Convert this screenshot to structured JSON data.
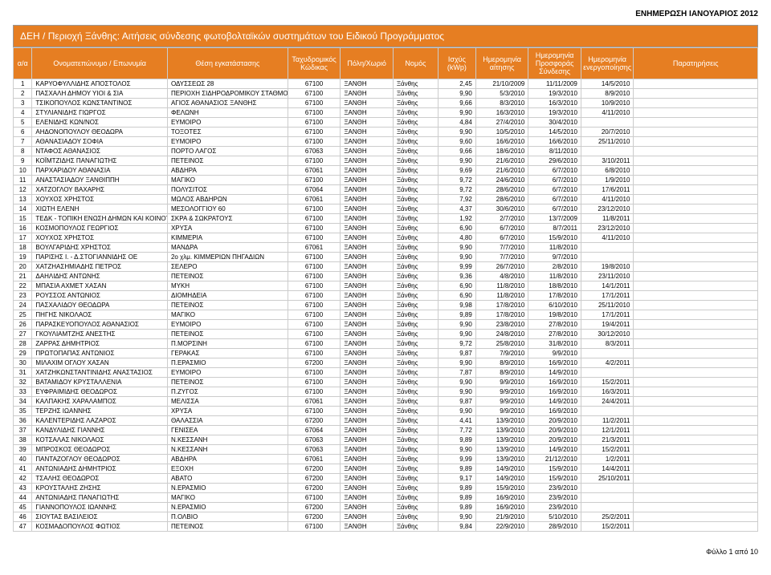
{
  "header_right": "ΕΝΗΜΕΡΩΣΗ ΙΑΝΟΥΑΡΙΟΣ 2012",
  "title": "ΔΕΗ / Περιοχή Ξάνθης:  Αιτήσεις σύνδεσης φωτοβολταϊκών συστημάτων του Ειδικού Προγράμματος",
  "columns": [
    "α/α",
    "Ονοματεπώνυμο / Επωνυμία",
    "Θέση εγκατάστασης",
    "Ταχυδρομικός Κώδικας",
    "Πόλη/Χωριό",
    "Νομός",
    "Ισχύς (kWp)",
    "Ημερομηνία αίτησης",
    "Ημερομηνία Προσφοράς Σύνδεσης",
    "Ημερομηνία ενεργοποίησης",
    "Παρατηρήσεις"
  ],
  "rows": [
    [
      "1",
      "ΚΑΡΥΟΦΥΛΛΙΔΗΣ ΑΠΟΣΤΟΛΟΣ",
      "ΟΔΥΣΣΕΩΣ 28",
      "67100",
      "ΞΑΝΘΗ",
      "Ξάνθης",
      "2,45",
      "21/10/2009",
      "11/11/2009",
      "14/5/2010",
      ""
    ],
    [
      "2",
      "ΠΑΣΧΑΛΗ ΔΗΜΟΥ ΥΙΟΙ & ΣΙΑ",
      "ΠΕΡΙΟΧΗ ΣΙΔΗΡΟΔΡΟΜΙΚΟΥ ΣΤΑΘΜΟΥ",
      "67100",
      "ΞΑΝΘΗ",
      "Ξάνθης",
      "9,90",
      "5/3/2010",
      "19/3/2010",
      "8/9/2010",
      ""
    ],
    [
      "3",
      "ΤΣΙΚΟΠΟΥΛΟΣ ΚΩΝΣΤΑΝΤΙΝΟΣ",
      "ΑΓΙΟΣ ΑΘΑΝΑΣΙΟΣ ΞΑΝΘΗΣ",
      "67100",
      "ΞΑΝΘΗ",
      "Ξάνθης",
      "9,66",
      "8/3/2010",
      "16/3/2010",
      "10/9/2010",
      ""
    ],
    [
      "4",
      "ΣΤΥΛΙΑΝΙΔΗΣ ΓΙΩΡΓΟΣ",
      "ΦΕΛΩΝΗ",
      "67100",
      "ΞΑΝΘΗ",
      "Ξάνθης",
      "9,90",
      "16/3/2010",
      "19/3/2010",
      "4/11/2010",
      ""
    ],
    [
      "5",
      "ΕΛΕΝΙΔΗΣ ΚΩΝ/ΝΟΣ",
      "ΕΥΜΟΙΡΟ",
      "67100",
      "ΞΑΝΘΗ",
      "Ξάνθης",
      "4,84",
      "27/4/2010",
      "30/4/2010",
      "",
      ""
    ],
    [
      "6",
      "ΑΗΔΟΝΟΠΟΥΛΟΥ ΘΕΟΔΩΡΑ",
      "ΤΟΞΟΤΕΣ",
      "67100",
      "ΞΑΝΘΗ",
      "Ξάνθης",
      "9,90",
      "10/5/2010",
      "14/5/2010",
      "20/7/2010",
      ""
    ],
    [
      "7",
      "ΑΘΑΝΑΣΙΑΔΟΥ ΣΟΦΙΑ",
      "ΕΥΜΟΙΡΟ",
      "67100",
      "ΞΑΝΘΗ",
      "Ξάνθης",
      "9,60",
      "16/6/2010",
      "16/6/2010",
      "25/11/2010",
      ""
    ],
    [
      "8",
      "ΝΤΑΦΟΣ ΑΘΑΝΑΣΙΟΣ",
      "ΠΟΡΤΟ ΛΑΓΟΣ",
      "67063",
      "ΞΑΝΘΗ",
      "Ξάνθης",
      "9,66",
      "18/6/2010",
      "8/11/2010",
      "",
      ""
    ],
    [
      "9",
      "ΚΟΪΜΤΖΙΔΗΣ ΠΑΝΑΓΙΩΤΗΣ",
      "ΠΕΤΕΙΝΟΣ",
      "67100",
      "ΞΑΝΘΗ",
      "Ξάνθης",
      "9,90",
      "21/6/2010",
      "29/6/2010",
      "3/10/2011",
      ""
    ],
    [
      "10",
      "ΠΑΡΧΑΡΙΔΟΥ ΑΘΑΝΑΣΙΑ",
      "ΑΒΔΗΡΑ",
      "67061",
      "ΞΑΝΘΗ",
      "Ξάνθης",
      "9,69",
      "21/6/2010",
      "6/7/2010",
      "6/8/2010",
      ""
    ],
    [
      "11",
      "ΑΝΑΣΤΑΣΙΑΔΟΥ ΞΑΝΘΙΠΠΗ",
      "ΜΑΓΙΚΟ",
      "67100",
      "ΞΑΝΘΗ",
      "Ξάνθης",
      "9,72",
      "24/6/2010",
      "6/7/2010",
      "1/9/2010",
      ""
    ],
    [
      "12",
      "ΧΑΤΖΟΓΛΟΥ ΒΑΧΑΡΗΣ",
      "ΠΟΛΥΣΙΤΟΣ",
      "67064",
      "ΞΑΝΘΗ",
      "Ξάνθης",
      "9,72",
      "28/6/2010",
      "6/7/2010",
      "17/6/2011",
      ""
    ],
    [
      "13",
      "ΧΟΥΧΟΣ ΧΡΗΣΤΟΣ",
      "ΜΩΛΟΣ ΑΒΔΗΡΩΝ",
      "67061",
      "ΞΑΝΘΗ",
      "Ξάνθης",
      "7,92",
      "28/6/2010",
      "6/7/2010",
      "4/11/2010",
      ""
    ],
    [
      "14",
      "ΧΙΩΤΗ ΕΛΕΝΗ",
      "ΜΕΣΟΛΟΓΓΙΟΥ 60",
      "67100",
      "ΞΑΝΘΗ",
      "Ξάνθης",
      "4,37",
      "30/6/2010",
      "6/7/2010",
      "23/12/2010",
      ""
    ],
    [
      "15",
      "ΤΕΔΚ - ΤΟΠΙΚΗ ΕΝΩΣΗ ΔΗΜΩΝ ΚΑΙ ΚΟΙΝΟΤΗΤΩΝ Ν.ΞΑΝΘΗΣ",
      "ΣΚΡΑ & ΣΩΚΡΑΤΟΥΣ",
      "67100",
      "ΞΑΝΘΗ",
      "Ξάνθης",
      "1,92",
      "2/7/2010",
      "13/7/2009",
      "11/8/2011",
      ""
    ],
    [
      "16",
      "ΚΟΣΜΟΠΟΥΛΟΣ ΓΕΩΡΓΙΟΣ",
      "ΧΡΥΣΑ",
      "67100",
      "ΞΑΝΘΗ",
      "Ξάνθης",
      "6,90",
      "6/7/2010",
      "8/7/2011",
      "23/12/2010",
      ""
    ],
    [
      "17",
      "ΧΟΥΧΟΣ ΧΡΗΣΤΟΣ",
      "ΚΙΜΜΕΡΙΑ",
      "67100",
      "ΞΑΝΘΗ",
      "Ξάνθης",
      "4,80",
      "6/7/2010",
      "15/9/2010",
      "4/11/2010",
      ""
    ],
    [
      "18",
      "ΒΟΥΛΓΑΡΙΔΗΣ ΧΡΗΣΤΟΣ",
      "ΜΑΝΔΡΑ",
      "67061",
      "ΞΑΝΘΗ",
      "Ξάνθης",
      "9,90",
      "7/7/2010",
      "11/8/2010",
      "",
      ""
    ],
    [
      "19",
      "ΠΑΡΙΣΗΣ Ι. - Δ.ΣΤΟΓΙΑΝΝΙΔΗΣ ΟΕ",
      "2ο χλμ. ΚΙΜΜΕΡΙΩΝ ΠΗΓΑΔΙΩΝ",
      "67100",
      "ΞΑΝΘΗ",
      "Ξάνθης",
      "9,90",
      "7/7/2010",
      "9/7/2010",
      "",
      ""
    ],
    [
      "20",
      "ΧΑΤΖΗΑΣΗΜΙΑΔΗΣ ΠΕΤΡΟΣ",
      "ΣΕΛΕΡΟ",
      "67100",
      "ΞΑΝΘΗ",
      "Ξάνθης",
      "9,99",
      "26/7/2010",
      "2/8/2010",
      "19/8/2010",
      ""
    ],
    [
      "21",
      "ΔΑΗΛΙΔΗΣ ΑΝΤΩΝΗΣ",
      "ΠΕΤΕΙΝΟΣ",
      "67100",
      "ΞΑΝΘΗ",
      "Ξάνθης",
      "9,36",
      "4/8/2010",
      "11/8/2010",
      "23/11/2010",
      ""
    ],
    [
      "22",
      "ΜΠΑΣΙΑ ΑΧΜΕΤ ΧΑΣΑΝ",
      "ΜΥΚΗ",
      "67100",
      "ΞΑΝΘΗ",
      "Ξάνθης",
      "6,90",
      "11/8/2010",
      "18/8/2010",
      "14/1/2011",
      ""
    ],
    [
      "23",
      "ΡΟΥΣΣΟΣ ΑΝΤΩΝΙΟΣ",
      "ΔΙΟΜΗΔΕΙΑ",
      "67100",
      "ΞΑΝΘΗ",
      "Ξάνθης",
      "6,90",
      "11/8/2010",
      "17/8/2010",
      "17/1/2011",
      ""
    ],
    [
      "24",
      "ΠΑΣΧΑΛΙΔΟΥ ΘΕΟΔΩΡΑ",
      "ΠΕΤΕΙΝΟΣ",
      "67100",
      "ΞΑΝΘΗ",
      "Ξάνθης",
      "9,98",
      "17/8/2010",
      "6/10/2010",
      "25/11/2010",
      ""
    ],
    [
      "25",
      "ΠΗΓΗΣ ΝΙΚΟΛΑΟΣ",
      "ΜΑΓΙΚΟ",
      "67100",
      "ΞΑΝΘΗ",
      "Ξάνθης",
      "9,89",
      "17/8/2010",
      "19/8/2010",
      "17/1/2011",
      ""
    ],
    [
      "26",
      "ΠΑΡΑΣΚΕΥΟΠΟΥΛΟΣ ΑΘΑΝΑΣΙΟΣ",
      "ΕΥΜΟΙΡΟ",
      "67100",
      "ΞΑΝΘΗ",
      "Ξάνθης",
      "9,90",
      "23/8/2010",
      "27/8/2010",
      "19/4/2011",
      ""
    ],
    [
      "27",
      "ΓΚΟΥΛΙΑΜΤΖΗΣ ΑΝΕΣΤΗΣ",
      "ΠΕΤΕΙΝΟΣ",
      "67100",
      "ΞΑΝΘΗ",
      "Ξάνθης",
      "9,90",
      "24/8/2010",
      "27/8/2010",
      "30/12/2010",
      ""
    ],
    [
      "28",
      "ΖΑΡΡΑΣ ΔΗΜΗΤΡΙΟΣ",
      "Π.ΜΟΡΣΙΝΗ",
      "67100",
      "ΞΑΝΘΗ",
      "Ξάνθης",
      "9,72",
      "25/8/2010",
      "31/8/2010",
      "8/3/2011",
      ""
    ],
    [
      "29",
      "ΠΡΩΤΟΠΑΠΑΣ ΑΝΤΩΝΙΟΣ",
      "ΓΕΡΑΚΑΣ",
      "67100",
      "ΞΑΝΘΗ",
      "Ξάνθης",
      "9,87",
      "7/9/2010",
      "9/9/2010",
      "",
      ""
    ],
    [
      "30",
      "ΜΙΛΑΧΙΜ ΟΓΛΟΥ ΧΑΣΑΝ",
      "Π.ΕΡΑΣΜΙΟ",
      "67200",
      "ΞΑΝΘΗ",
      "Ξάνθης",
      "9,90",
      "8/9/2010",
      "16/9/2010",
      "4/2/2011",
      ""
    ],
    [
      "31",
      "ΧΑΤΖΗΚΩΝΣΤΑΝΤΙΝΙΔΗΣ ΑΝΑΣΤΑΣΙΟΣ",
      "ΕΥΜΟΙΡΟ",
      "67100",
      "ΞΑΝΘΗ",
      "Ξάνθης",
      "7,87",
      "8/9/2010",
      "14/9/2010",
      "",
      ""
    ],
    [
      "32",
      "ΒΑΤΑΜΙΔΟΥ ΚΡΥΣΤΑΛΛΕΝΙΑ",
      "ΠΕΤΕΙΝΟΣ",
      "67100",
      "ΞΑΝΘΗ",
      "Ξάνθης",
      "9,90",
      "9/9/2010",
      "16/9/2010",
      "15/2/2011",
      ""
    ],
    [
      "33",
      "ΕΥΦΡΑΙΜΙΔΗΣ ΘΕΟΔΩΡΟΣ",
      "Π.ΖΥΓΟΣ",
      "67100",
      "ΞΑΝΘΗ",
      "Ξάνθης",
      "9,90",
      "9/9/2010",
      "16/9/2010",
      "16/3/2011",
      ""
    ],
    [
      "34",
      "ΚΑΛΠΑΚΗΣ ΧΑΡΑΛΑΜΠΟΣ",
      "ΜΕΛΙΣΣΑ",
      "67061",
      "ΞΑΝΘΗ",
      "Ξάνθης",
      "9,87",
      "9/9/2010",
      "14/9/2010",
      "24/4/2011",
      ""
    ],
    [
      "35",
      "ΤΕΡΖΗΣ ΙΩΑΝΝΗΣ",
      "ΧΡΥΣΑ",
      "67100",
      "ΞΑΝΘΗ",
      "Ξάνθης",
      "9,90",
      "9/9/2010",
      "16/9/2010",
      "",
      ""
    ],
    [
      "36",
      "ΚΑΛΕΝΤΕΡΙΔΗΣ ΛΑΖΑΡΟΣ",
      "ΘΑΛΑΣΣΙΑ",
      "67200",
      "ΞΑΝΘΗ",
      "Ξάνθης",
      "4,41",
      "13/9/2010",
      "20/9/2010",
      "11/2/2011",
      ""
    ],
    [
      "37",
      "ΚΑΝΔΥΛΙΔΗΣ ΓΙΑΝΝΗΣ",
      "ΓΕΝΙΣΕΑ",
      "67064",
      "ΞΑΝΘΗ",
      "Ξάνθης",
      "7,72",
      "13/9/2010",
      "20/9/2010",
      "12/1/2011",
      ""
    ],
    [
      "38",
      "ΚΟΤΣΑΛΑΣ ΝΙΚΟΛΑΟΣ",
      "Ν.ΚΕΣΣΑΝΗ",
      "67063",
      "ΞΑΝΘΗ",
      "Ξάνθης",
      "9,89",
      "13/9/2010",
      "20/9/2010",
      "21/3/2011",
      ""
    ],
    [
      "39",
      "ΜΠΡΟΣΚΟΣ ΘΕΟΔΩΡΟΣ",
      "Ν.ΚΕΣΣΑΝΗ",
      "67063",
      "ΞΑΝΘΗ",
      "Ξάνθης",
      "9,90",
      "13/9/2010",
      "14/9/2010",
      "15/2/2011",
      ""
    ],
    [
      "40",
      "ΠΑΝΤΑΖΟΓΛΟΥ ΘΕΟΔΩΡΟΣ",
      "ΑΒΔΗΡΑ",
      "67061",
      "ΞΑΝΘΗ",
      "Ξάνθης",
      "9,99",
      "13/9/2010",
      "21/12/2010",
      "1/2/2011",
      ""
    ],
    [
      "41",
      "ΑΝΤΩΝΙΑΔΗΣ ΔΗΜΗΤΡΙΟΣ",
      "ΕΞΟΧΗ",
      "67200",
      "ΞΑΝΘΗ",
      "Ξάνθης",
      "9,89",
      "14/9/2010",
      "15/9/2010",
      "14/4/2011",
      ""
    ],
    [
      "42",
      "ΤΣΑΛΗΣ ΘΕΟΔΩΡΟΣ",
      "ΑΒΑΤΟ",
      "67200",
      "ΞΑΝΘΗ",
      "Ξάνθης",
      "9,17",
      "14/9/2010",
      "15/9/2010",
      "25/10/2011",
      ""
    ],
    [
      "43",
      "ΚΡΟΥΣΤΑΛΗΣ ΖΗΣΗΣ",
      "Ν.ΕΡΑΣΜΙΟ",
      "67200",
      "ΞΑΝΘΗ",
      "Ξάνθης",
      "9,89",
      "15/9/2010",
      "23/9/2010",
      "",
      ""
    ],
    [
      "44",
      "ΑΝΤΩΝΙΑΔΗΣ ΠΑΝΑΓΙΩΤΗΣ",
      "ΜΑΓΙΚΟ",
      "67100",
      "ΞΑΝΘΗ",
      "Ξάνθης",
      "9,89",
      "16/9/2010",
      "23/9/2010",
      "",
      ""
    ],
    [
      "45",
      "ΓΙΑΝΝΟΠΟΥΛΟΣ ΙΩΑΝΝΗΣ",
      "Ν.ΕΡΑΣΜΙΟ",
      "67200",
      "ΞΑΝΘΗ",
      "Ξάνθης",
      "9,89",
      "16/9/2010",
      "23/9/2010",
      "",
      ""
    ],
    [
      "46",
      "ΣΙΟΥΤΑΣ ΒΑΣΙΛΕΙΟΣ",
      "Π.ΟΛΒΙΟ",
      "67200",
      "ΞΑΝΘΗ",
      "Ξάνθης",
      "9,90",
      "21/9/2010",
      "5/10/2010",
      "25/2/2011",
      ""
    ],
    [
      "47",
      "ΚΟΣΜΑΔΟΠΟΥΛΟΣ ΦΩΤΙΟΣ",
      "ΠΕΤΕΙΝΟΣ",
      "67100",
      "ΞΑΝΘΗ",
      "Ξάνθης",
      "9,84",
      "22/9/2010",
      "28/9/2010",
      "15/2/2011",
      ""
    ]
  ],
  "footer": "Φύλλο 1 από 10",
  "colors": {
    "header_bg": "#e67e22",
    "header_text": "#ffffff",
    "border": "#cccccc"
  }
}
